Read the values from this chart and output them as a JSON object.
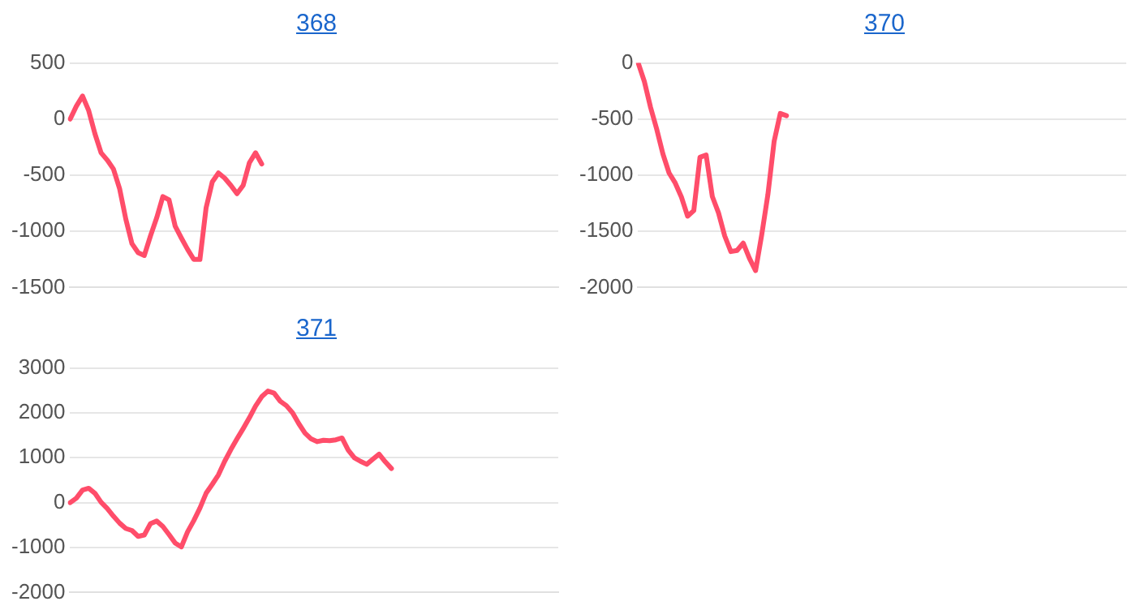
{
  "chart_data": [
    {
      "type": "line",
      "title": "368",
      "categories": [
        null,
        null,
        null,
        null,
        null,
        null,
        null,
        null,
        null,
        null,
        null,
        null,
        null,
        null,
        null,
        null,
        null,
        null,
        null,
        null,
        null,
        null,
        null,
        null,
        null,
        null,
        null,
        null,
        null,
        null,
        null,
        null,
        null,
        null,
        null,
        null,
        null,
        null,
        null,
        null,
        null,
        null,
        null,
        null,
        null,
        null,
        null,
        null,
        null,
        null,
        null,
        null,
        null,
        null,
        null,
        null,
        null,
        null,
        null,
        null,
        null,
        null,
        null,
        null,
        null,
        null,
        null,
        null,
        null,
        null,
        null,
        null,
        null,
        null,
        null,
        null,
        null,
        null,
        null,
        null
      ],
      "series": [
        {
          "color": "#ff4d6a",
          "values": [
            0,
            115,
            205,
            75,
            -130,
            -300,
            -365,
            -445,
            -620,
            -890,
            -1110,
            -1190,
            -1215,
            -1040,
            -880,
            -690,
            -720,
            -955,
            -1060,
            -1160,
            -1250,
            -1250,
            -790,
            -560,
            -480,
            -525,
            -590,
            -665,
            -590,
            -390,
            -300,
            -400,
            null,
            null,
            null,
            null,
            null,
            null,
            null,
            null,
            null,
            null,
            null,
            null,
            null,
            null,
            null,
            null,
            null,
            null,
            null,
            null,
            null,
            null,
            null,
            null,
            null,
            null,
            null,
            null,
            null,
            null,
            null,
            null,
            null,
            null,
            null,
            null,
            null,
            null,
            null,
            null,
            null,
            null,
            null,
            null,
            null,
            null,
            null,
            null
          ]
        }
      ],
      "ylim": [
        -1500,
        500
      ],
      "yticks": [
        -1500,
        -1000,
        -500,
        0,
        500
      ],
      "grid": "y",
      "legend": false,
      "marker": "none",
      "tick_labels": "y"
    },
    {
      "type": "line",
      "title": "370",
      "categories": [
        null,
        null,
        null,
        null,
        null,
        null,
        null,
        null,
        null,
        null,
        null,
        null,
        null,
        null,
        null,
        null,
        null,
        null,
        null,
        null,
        null,
        null,
        null,
        null,
        null,
        null,
        null,
        null,
        null,
        null,
        null,
        null,
        null,
        null,
        null,
        null,
        null,
        null,
        null,
        null,
        null,
        null,
        null,
        null,
        null,
        null,
        null,
        null,
        null,
        null,
        null,
        null,
        null,
        null,
        null,
        null,
        null,
        null,
        null,
        null,
        null,
        null,
        null,
        null,
        null,
        null,
        null,
        null,
        null,
        null,
        null,
        null,
        null,
        null,
        null,
        null,
        null,
        null,
        null,
        null
      ],
      "series": [
        {
          "color": "#ff4d6a",
          "values": [
            0,
            -165,
            -395,
            -590,
            -810,
            -980,
            -1070,
            -1195,
            -1365,
            -1315,
            -840,
            -820,
            -1190,
            -1335,
            -1540,
            -1680,
            -1670,
            -1605,
            -1740,
            -1850,
            -1530,
            -1170,
            -700,
            -450,
            -470,
            null,
            null,
            null,
            null,
            null,
            null,
            null,
            null,
            null,
            null,
            null,
            null,
            null,
            null,
            null,
            null,
            null,
            null,
            null,
            null,
            null,
            null,
            null,
            null,
            null,
            null,
            null,
            null,
            null,
            null,
            null,
            null,
            null,
            null,
            null,
            null,
            null,
            null,
            null,
            null,
            null,
            null,
            null,
            null,
            null,
            null,
            null,
            null,
            null,
            null,
            null,
            null,
            null,
            null,
            null
          ]
        }
      ],
      "ylim": [
        -2000,
        0
      ],
      "yticks": [
        -2000,
        -1500,
        -1000,
        -500,
        0
      ],
      "grid": "y",
      "legend": false,
      "marker": "none",
      "tick_labels": "y"
    },
    {
      "type": "line",
      "title": "371",
      "categories": [
        null,
        null,
        null,
        null,
        null,
        null,
        null,
        null,
        null,
        null,
        null,
        null,
        null,
        null,
        null,
        null,
        null,
        null,
        null,
        null,
        null,
        null,
        null,
        null,
        null,
        null,
        null,
        null,
        null,
        null,
        null,
        null,
        null,
        null,
        null,
        null,
        null,
        null,
        null,
        null,
        null,
        null,
        null,
        null,
        null,
        null,
        null,
        null,
        null,
        null,
        null,
        null,
        null,
        null,
        null,
        null,
        null,
        null,
        null,
        null,
        null,
        null,
        null,
        null,
        null,
        null,
        null,
        null,
        null,
        null,
        null,
        null,
        null,
        null,
        null,
        null,
        null,
        null,
        null,
        null
      ],
      "series": [
        {
          "color": "#ff4d6a",
          "values": [
            0,
            100,
            280,
            320,
            210,
            10,
            -130,
            -300,
            -455,
            -575,
            -620,
            -750,
            -720,
            -465,
            -410,
            -530,
            -710,
            -900,
            -985,
            -650,
            -400,
            -120,
            210,
            410,
            620,
            920,
            1180,
            1420,
            1650,
            1890,
            2150,
            2360,
            2485,
            2440,
            2260,
            2160,
            2000,
            1760,
            1550,
            1420,
            1360,
            1390,
            1380,
            1400,
            1440,
            1170,
            1000,
            920,
            855,
            970,
            1080,
            910,
            760,
            null,
            null,
            null,
            null,
            null,
            null,
            null,
            null,
            null,
            null,
            null,
            null,
            null,
            null,
            null,
            null,
            null,
            null,
            null,
            null,
            null,
            null,
            null,
            null,
            null,
            null,
            null
          ]
        }
      ],
      "ylim": [
        -2000,
        3000
      ],
      "yticks": [
        -2000,
        -1000,
        0,
        1000,
        2000,
        3000
      ],
      "grid": "y",
      "legend": false,
      "marker": "none",
      "tick_labels": "y"
    }
  ]
}
